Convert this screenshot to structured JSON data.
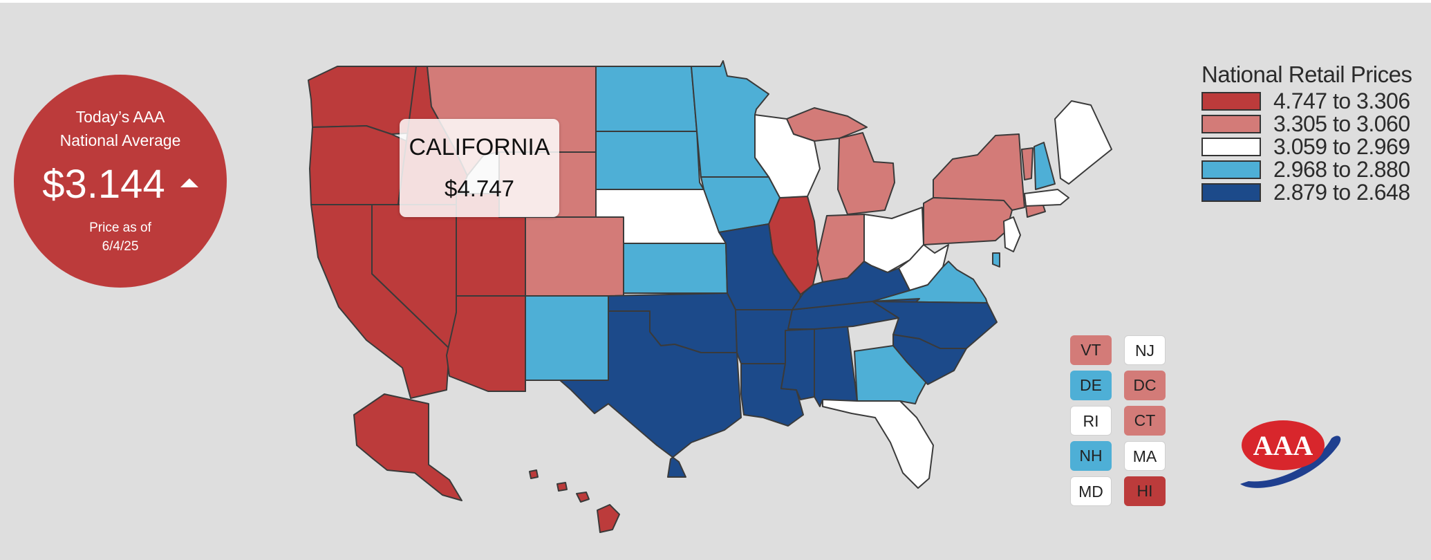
{
  "national_average": {
    "title_line1": "Today’s AAA",
    "title_line2": "National Average",
    "price": "$3.144",
    "trend": "up",
    "date_line1": "Price as of",
    "date_line2": "6/4/25"
  },
  "tooltip": {
    "state": "CALIFORNIA",
    "price": "$4.747"
  },
  "legend": {
    "title": "National Retail Prices",
    "items": [
      {
        "label": "4.747 to 3.306",
        "color": "#bc3b3b"
      },
      {
        "label": "3.305 to 3.060",
        "color": "#d37b78"
      },
      {
        "label": "3.059 to 2.969",
        "color": "#ffffff"
      },
      {
        "label": "2.968 to 2.880",
        "color": "#4eafd6"
      },
      {
        "label": "2.879 to 2.648",
        "color": "#1c4a8a"
      }
    ]
  },
  "small_states": [
    {
      "abbr": "VT",
      "tier": 1
    },
    {
      "abbr": "NJ",
      "tier": 2
    },
    {
      "abbr": "DE",
      "tier": 3
    },
    {
      "abbr": "DC",
      "tier": 1
    },
    {
      "abbr": "RI",
      "tier": 2
    },
    {
      "abbr": "CT",
      "tier": 1
    },
    {
      "abbr": "NH",
      "tier": 3
    },
    {
      "abbr": "MA",
      "tier": 2
    },
    {
      "abbr": "MD",
      "tier": 2
    },
    {
      "abbr": "HI",
      "tier": 0
    }
  ],
  "logo": {
    "text": "AAA"
  },
  "colors": {
    "background": "#dedede",
    "border": "#3a3a3a"
  }
}
